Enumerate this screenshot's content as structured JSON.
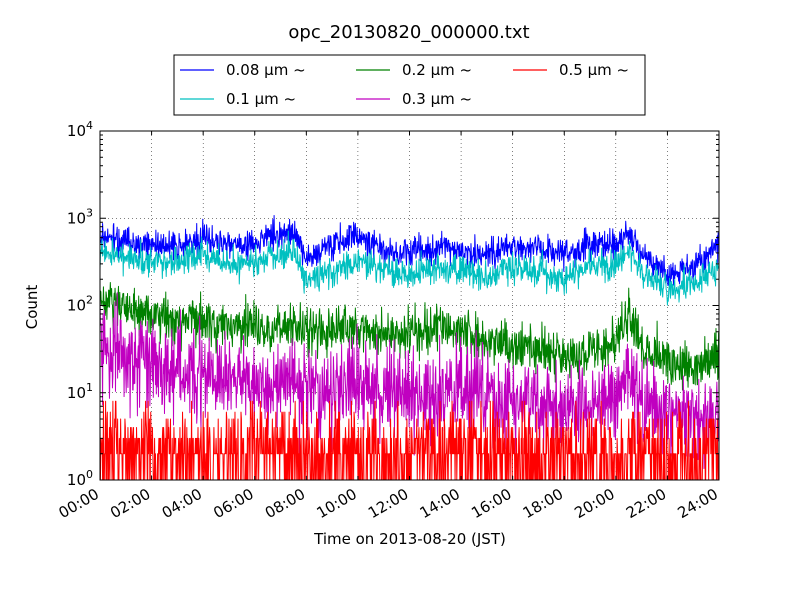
{
  "chart_data": {
    "type": "line",
    "title": "opc_20130820_000000.txt",
    "xlabel": "Time on 2013-08-20 (JST)",
    "ylabel": "Count",
    "yscale": "log",
    "ylim": [
      1,
      10000
    ],
    "xlim": [
      "00:00",
      "24:00"
    ],
    "grid": true,
    "legend_position": "top-center",
    "x_ticks": [
      "00:00",
      "02:00",
      "04:00",
      "06:00",
      "08:00",
      "10:00",
      "12:00",
      "14:00",
      "16:00",
      "18:00",
      "20:00",
      "22:00",
      "24:00"
    ],
    "y_ticks": [
      {
        "base": "10",
        "exp": "0",
        "value": 1
      },
      {
        "base": "10",
        "exp": "1",
        "value": 10
      },
      {
        "base": "10",
        "exp": "2",
        "value": 100
      },
      {
        "base": "10",
        "exp": "3",
        "value": 1000
      },
      {
        "base": "10",
        "exp": "4",
        "value": 10000
      }
    ],
    "x_hours": [
      0,
      1,
      2,
      3,
      4,
      5,
      6,
      7,
      7.5,
      8,
      9,
      10,
      11,
      12,
      13,
      14,
      15,
      16,
      17,
      18,
      19,
      20,
      20.5,
      21,
      22,
      23,
      24
    ],
    "series": [
      {
        "name": "0.08 µm ~",
        "color": "#0000ff",
        "noise": 0.12,
        "values": [
          650,
          550,
          500,
          480,
          620,
          500,
          520,
          650,
          700,
          350,
          500,
          650,
          420,
          380,
          450,
          420,
          350,
          500,
          430,
          380,
          500,
          480,
          700,
          380,
          220,
          270,
          500
        ]
      },
      {
        "name": "0.1 µm ~",
        "color": "#00c0c0",
        "noise": 0.12,
        "values": [
          420,
          350,
          320,
          320,
          380,
          300,
          310,
          380,
          420,
          200,
          250,
          330,
          250,
          220,
          260,
          250,
          210,
          280,
          250,
          200,
          280,
          280,
          420,
          250,
          150,
          170,
          280
        ]
      },
      {
        "name": "0.2 µm ~",
        "color": "#008000",
        "noise": 0.18,
        "values": [
          110,
          90,
          75,
          65,
          65,
          58,
          55,
          55,
          60,
          55,
          50,
          55,
          48,
          45,
          55,
          50,
          40,
          35,
          32,
          28,
          28,
          40,
          80,
          35,
          22,
          20,
          28
        ]
      },
      {
        "name": "0.3 µm ~",
        "color": "#c000c0",
        "noise": 0.35,
        "values": [
          35,
          25,
          22,
          18,
          16,
          14,
          13,
          14,
          12,
          12,
          11,
          12,
          11,
          10,
          10,
          11,
          9,
          8,
          7,
          6,
          7,
          10,
          18,
          8,
          6,
          5,
          6
        ]
      },
      {
        "name": "0.5 µm ~",
        "color": "#ff0000",
        "noise": 0,
        "values": [
          2,
          2,
          2,
          1.6,
          1.6,
          1.5,
          1.5,
          1.5,
          1.5,
          1.4,
          1.4,
          1.4,
          1.4,
          1.4,
          1.4,
          1.4,
          1.4,
          1.4,
          1.3,
          1.3,
          1.4,
          1.5,
          1.8,
          1.4,
          1.3,
          1.3,
          1.4
        ],
        "counts": [
          1,
          2,
          3,
          4,
          5,
          6,
          8
        ],
        "count_weights": [
          0.38,
          0.27,
          0.17,
          0.08,
          0.05,
          0.03,
          0.02
        ]
      }
    ],
    "legend_rows": [
      [
        {
          "series": 0
        },
        {
          "series": 2
        },
        {
          "series": 4
        }
      ],
      [
        {
          "series": 1
        },
        {
          "series": 3
        }
      ]
    ]
  }
}
